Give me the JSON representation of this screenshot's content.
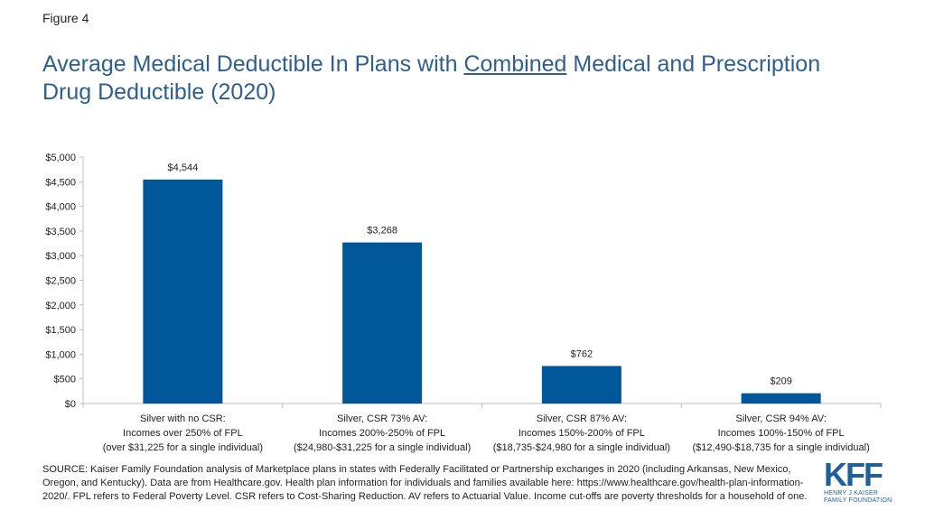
{
  "figure_label": "Figure 4",
  "title": {
    "part1": "Average Medical Deductible In Plans with ",
    "underlined": "Combined",
    "part2": " Medical and Prescription Drug Deductible (2020)"
  },
  "chart_data": {
    "type": "bar",
    "title": "Average Medical Deductible In Plans with Combined Medical and Prescription Drug Deductible (2020)",
    "xlabel": "",
    "ylabel": "",
    "ylim": [
      0,
      5000
    ],
    "yticks": [
      0,
      500,
      1000,
      1500,
      2000,
      2500,
      3000,
      3500,
      4000,
      4500,
      5000
    ],
    "ytick_labels": [
      "$0",
      "$500",
      "$1,000",
      "$1,500",
      "$2,000",
      "$2,500",
      "$3,000",
      "$3,500",
      "$4,000",
      "$4,500",
      "$5,000"
    ],
    "categories": [
      [
        "Silver with no CSR:",
        "Incomes over 250% of FPL",
        "(over $31,225 for a single individual)"
      ],
      [
        "Silver, CSR 73% AV:",
        "Incomes 200%-250% of FPL",
        "($24,980-$31,225 for a single individual)"
      ],
      [
        "Silver, CSR 87% AV:",
        "Incomes 150%-200% of FPL",
        "($18,735-$24,980 for a single individual)"
      ],
      [
        "Silver, CSR 94% AV:",
        "Incomes 100%-150% of FPL",
        "($12,490-$18,735 for a single individual)"
      ]
    ],
    "values": [
      4544,
      3268,
      762,
      209
    ],
    "value_labels": [
      "$4,544",
      "$3,268",
      "$762",
      "$209"
    ],
    "bar_color": "#00579a",
    "grid": false
  },
  "source": "SOURCE: Kaiser Family Foundation analysis of Marketplace plans in states with Federally Facilitated or Partnership exchanges in 2020 (including Arkansas, New Mexico, Oregon, and Kentucky). Data are from Healthcare.gov. Health plan information for individuals and families available here: https://www.healthcare.gov/health-plan-information-2020/. FPL refers to Federal Poverty Level. CSR refers to Cost-Sharing Reduction. AV refers to Actuarial Value. Income cut-offs are poverty thresholds for a household of one.",
  "logo": {
    "mark": "KFF",
    "line1": "HENRY J KAISER",
    "line2": "FAMILY FOUNDATION"
  }
}
